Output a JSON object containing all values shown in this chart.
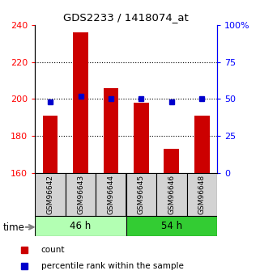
{
  "title": "GDS2233 / 1418074_at",
  "samples": [
    "GSM96642",
    "GSM96643",
    "GSM96644",
    "GSM96645",
    "GSM96646",
    "GSM96648"
  ],
  "counts": [
    191,
    236,
    206,
    198,
    173,
    191
  ],
  "percentiles": [
    48,
    52,
    50,
    50,
    48,
    50
  ],
  "left_ylim": [
    160,
    240
  ],
  "right_ylim": [
    0,
    100
  ],
  "left_yticks": [
    160,
    180,
    200,
    220,
    240
  ],
  "right_yticks": [
    0,
    25,
    50,
    75,
    100
  ],
  "right_yticklabels": [
    "0",
    "25",
    "50",
    "75",
    "100%"
  ],
  "bar_color": "#cc0000",
  "dot_color": "#0000cc",
  "group1_label": "46 h",
  "group2_label": "54 h",
  "time_label": "time",
  "legend_count": "count",
  "legend_percentile": "percentile rank within the sample",
  "light_green": "#b3ffb3",
  "green": "#33cc33",
  "gray_box": "#D3D3D3",
  "bar_width": 0.5
}
